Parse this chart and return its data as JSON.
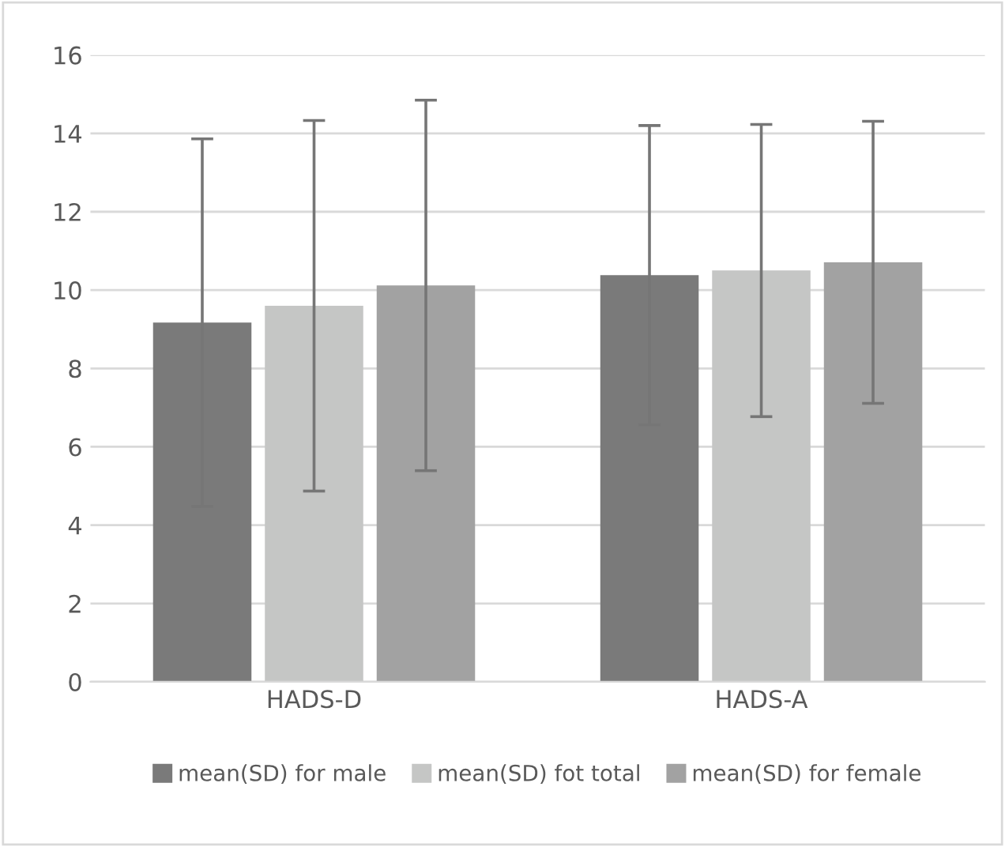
{
  "chart_data": {
    "type": "bar",
    "categories": [
      "HADS-D",
      "HADS-A"
    ],
    "series": [
      {
        "name": "mean(SD) for male",
        "color": "#7a7a7a",
        "values": [
          9.17,
          10.38
        ],
        "errors": [
          4.69,
          3.82
        ]
      },
      {
        "name": "mean(SD) fot total",
        "color": "#c5c6c5",
        "values": [
          9.6,
          10.5
        ],
        "errors": [
          4.73,
          3.73
        ]
      },
      {
        "name": "mean(SD) for female",
        "color": "#a2a2a2",
        "values": [
          10.12,
          10.71
        ],
        "errors": [
          4.73,
          3.6
        ]
      }
    ],
    "ylim": [
      0,
      16
    ],
    "yticks": [
      0,
      2,
      4,
      6,
      8,
      10,
      12,
      14,
      16
    ],
    "grid": "y",
    "legend": "bottom"
  }
}
